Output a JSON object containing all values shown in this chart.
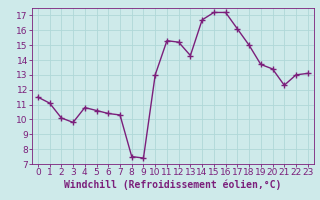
{
  "x": [
    0,
    1,
    2,
    3,
    4,
    5,
    6,
    7,
    8,
    9,
    10,
    11,
    12,
    13,
    14,
    15,
    16,
    17,
    18,
    19,
    20,
    21,
    22,
    23
  ],
  "y": [
    11.5,
    11.1,
    10.1,
    9.8,
    10.8,
    10.6,
    10.4,
    10.3,
    7.5,
    7.4,
    13.0,
    15.3,
    15.2,
    14.3,
    16.7,
    17.2,
    17.2,
    16.1,
    15.0,
    13.7,
    13.4,
    12.3,
    13.0,
    13.1
  ],
  "line_color": "#7B1F7B",
  "marker": "+",
  "marker_size": 4,
  "bg_color": "#ceeaea",
  "grid_color": "#b0d8d8",
  "xlabel": "Windchill (Refroidissement éolien,°C)",
  "xlabel_color": "#7B1F7B",
  "ylim": [
    7,
    17.5
  ],
  "xlim": [
    -0.5,
    23.5
  ],
  "yticks": [
    7,
    8,
    9,
    10,
    11,
    12,
    13,
    14,
    15,
    16,
    17
  ],
  "xticks": [
    0,
    1,
    2,
    3,
    4,
    5,
    6,
    7,
    8,
    9,
    10,
    11,
    12,
    13,
    14,
    15,
    16,
    17,
    18,
    19,
    20,
    21,
    22,
    23
  ],
  "tick_label_color": "#7B1F7B",
  "tick_label_size": 6.5,
  "xlabel_size": 7,
  "spine_color": "#7B1F7B",
  "linewidth": 1.0
}
